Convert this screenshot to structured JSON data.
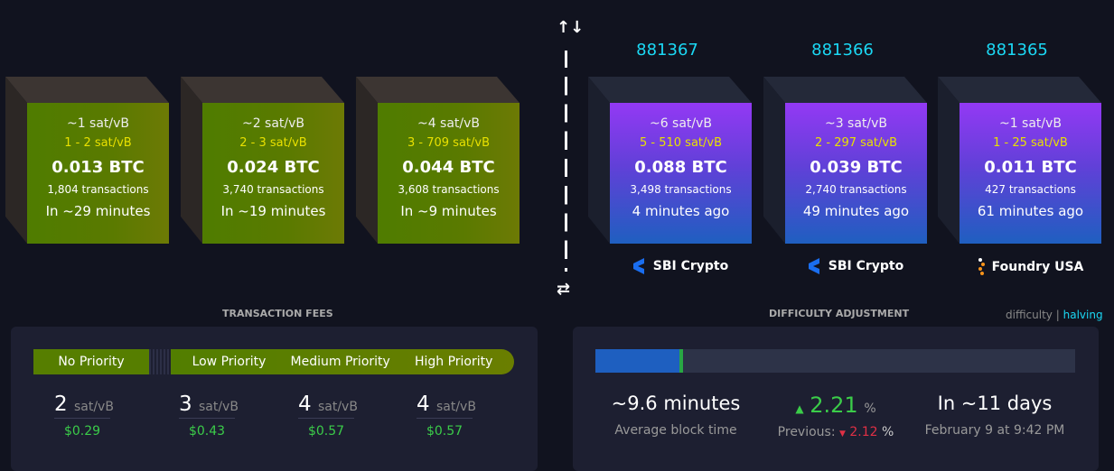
{
  "mempool_blocks": [
    {
      "median_fee": "~1 sat/vB",
      "fee_range": "1 - 2 sat/vB",
      "total": "0.013 BTC",
      "tx_count": "1,804 transactions",
      "eta": "In ~29 minutes"
    },
    {
      "median_fee": "~2 sat/vB",
      "fee_range": "2 - 3 sat/vB",
      "total": "0.024 BTC",
      "tx_count": "3,740 transactions",
      "eta": "In ~19 minutes"
    },
    {
      "median_fee": "~4 sat/vB",
      "fee_range": "3 - 709 sat/vB",
      "total": "0.044 BTC",
      "tx_count": "3,608 transactions",
      "eta": "In ~9 minutes"
    }
  ],
  "blocks": [
    {
      "height": "881367",
      "median_fee": "~6 sat/vB",
      "fee_range": "5 - 510 sat/vB",
      "total": "0.088 BTC",
      "tx_count": "3,498 transactions",
      "age": "4 minutes ago",
      "pool": "SBI Crypto"
    },
    {
      "height": "881366",
      "median_fee": "~3 sat/vB",
      "fee_range": "2 - 297 sat/vB",
      "total": "0.039 BTC",
      "tx_count": "2,740 transactions",
      "age": "49 minutes ago",
      "pool": "SBI Crypto"
    },
    {
      "height": "881365",
      "median_fee": "~1 sat/vB",
      "fee_range": "1 - 25 sat/vB",
      "total": "0.011 BTC",
      "tx_count": "427 transactions",
      "age": "61 minutes ago",
      "pool": "Foundry USA"
    }
  ],
  "icons": {
    "top": "↑↓",
    "bottom": "⇄"
  },
  "fees": {
    "title": "TRANSACTION FEES",
    "labels": [
      "No Priority",
      "Low Priority",
      "Medium Priority",
      "High Priority"
    ],
    "rates": [
      {
        "value": "2",
        "unit": "sat/vB",
        "usd": "$0.29"
      },
      {
        "value": "3",
        "unit": "sat/vB",
        "usd": "$0.43"
      },
      {
        "value": "4",
        "unit": "sat/vB",
        "usd": "$0.57"
      },
      {
        "value": "4",
        "unit": "sat/vB",
        "usd": "$0.57"
      }
    ]
  },
  "difficulty": {
    "title": "DIFFICULTY ADJUSTMENT",
    "tab_difficulty": "difficulty",
    "sep": "|",
    "tab_halving": "halving",
    "progress_percent": 17.5,
    "avg_block_time": "~9.6 minutes",
    "avg_label": "Average block time",
    "change": "2.21",
    "change_unit": "%",
    "previous_label": "Previous:",
    "previous": "2.12",
    "previous_unit": "%",
    "eta": "In ~11 days",
    "eta_date": "February 9 at 9:42 PM"
  },
  "colors": {
    "accent": "#1bd8f4",
    "green": "#3bcc49",
    "red": "#e03045"
  }
}
